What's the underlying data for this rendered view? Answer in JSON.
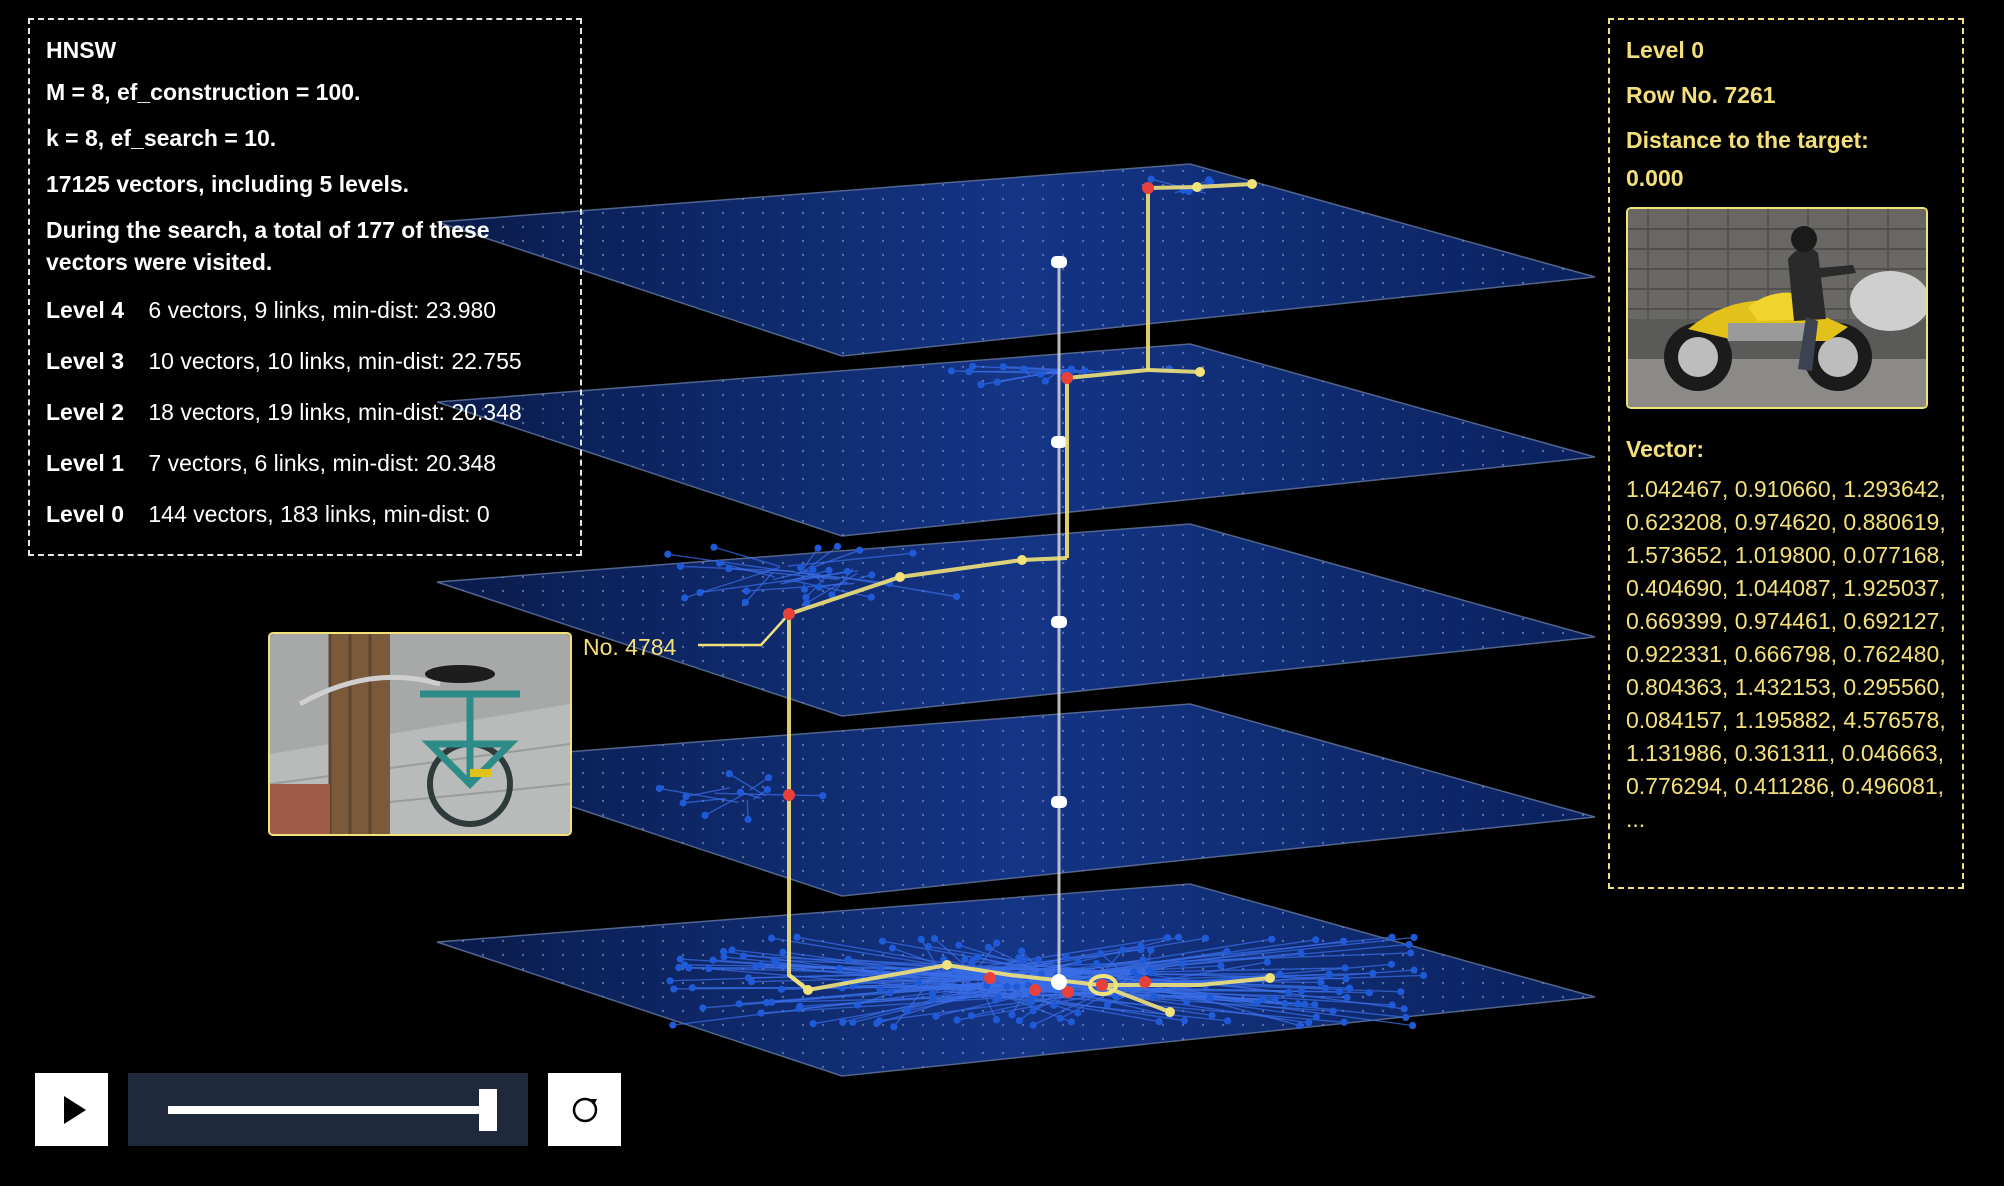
{
  "info": {
    "title": "HNSW",
    "params_construction": "M = 8, ef_construction = 100.",
    "params_search": "k = 8, ef_search = 10.",
    "dataset": "17125 vectors, including 5 levels.",
    "visited": "During the search, a total of 177 of these vectors were visited.",
    "levels": [
      {
        "name": "Level 4",
        "stats": "6 vectors, 9 links, min-dist: 23.980"
      },
      {
        "name": "Level 3",
        "stats": "10 vectors, 10 links, min-dist: 22.755"
      },
      {
        "name": "Level 2",
        "stats": "18 vectors, 19 links, min-dist: 20.348"
      },
      {
        "name": "Level 1",
        "stats": "7 vectors, 6 links, min-dist: 20.348"
      },
      {
        "name": "Level 0",
        "stats": "144 vectors, 183 links, min-dist: 0"
      }
    ]
  },
  "node": {
    "level": "Level 0",
    "row": "Row No. 7261",
    "distance_label": "Distance to the target:",
    "distance_value": "0.000",
    "vector_title": "Vector:",
    "vector_values": "1.042467, 0.910660, 1.293642, 0.623208, 0.974620, 0.880619, 1.573652, 1.019800, 0.077168, 0.404690, 1.044087, 1.925037, 0.669399, 0.974461, 0.692127, 0.922331, 0.666798, 0.762480, 0.804363, 1.432153, 0.295560, 0.084157, 1.195882, 4.576578, 1.131986, 0.361311, 0.046663, 0.776294, 0.411286, 0.496081, ..."
  },
  "callout": {
    "label": "No. 4784"
  },
  "colors": {
    "plane": "#0f2a6e",
    "plane_edge": "#5a6e9a",
    "path": "#f2e27a",
    "node": "#1f5bd8",
    "visited_red": "#e8403a",
    "entry": "#ffffff"
  },
  "icons": {
    "play": "play-icon",
    "reset": "reset-icon"
  },
  "playback": {
    "progress": 1.0
  }
}
